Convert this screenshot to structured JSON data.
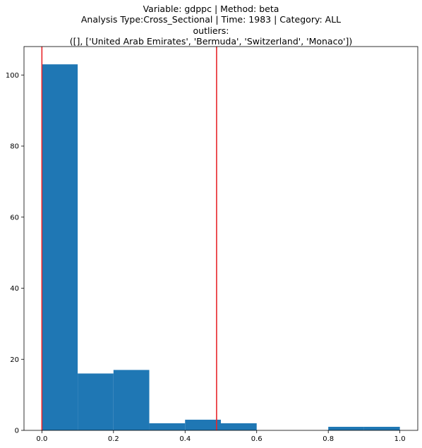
{
  "chart_data": {
    "type": "bar",
    "title_lines": [
      "Variable: gdppc | Method: beta",
      "Analysis Type:Cross_Sectional | Time: 1983 | Category: ALL",
      "outliers:",
      "([], ['United Arab Emirates', 'Bermuda', 'Switzerland', 'Monaco'])"
    ],
    "xlabel": "",
    "ylabel": "",
    "xlim": [
      -0.05,
      1.05
    ],
    "ylim": [
      0,
      108
    ],
    "x_ticks": [
      0.0,
      0.2,
      0.4,
      0.6,
      0.8,
      1.0
    ],
    "x_tick_labels": [
      "0.0",
      "0.2",
      "0.4",
      "0.6",
      "0.8",
      "1.0"
    ],
    "y_ticks": [
      0,
      20,
      40,
      60,
      80,
      100
    ],
    "y_tick_labels": [
      "0",
      "20",
      "40",
      "60",
      "80",
      "100"
    ],
    "bins": [
      {
        "start": 0.0,
        "end": 0.1,
        "count": 103
      },
      {
        "start": 0.1,
        "end": 0.2,
        "count": 16
      },
      {
        "start": 0.2,
        "end": 0.3,
        "count": 17
      },
      {
        "start": 0.3,
        "end": 0.4,
        "count": 2
      },
      {
        "start": 0.4,
        "end": 0.5,
        "count": 3
      },
      {
        "start": 0.5,
        "end": 0.6,
        "count": 2
      },
      {
        "start": 0.6,
        "end": 0.7,
        "count": 0
      },
      {
        "start": 0.7,
        "end": 0.8,
        "count": 0
      },
      {
        "start": 0.8,
        "end": 0.9,
        "count": 1
      },
      {
        "start": 0.9,
        "end": 1.0,
        "count": 1
      }
    ],
    "vertical_lines": [
      0.0,
      0.488
    ],
    "bar_color": "#1f77b4",
    "line_color": "#e8262b",
    "grid": false
  }
}
